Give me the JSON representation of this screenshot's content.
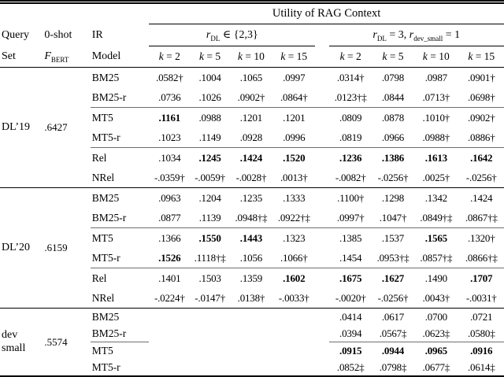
{
  "title": "Utility of RAG Context",
  "header": {
    "query_line1": "Query",
    "query_line2": "Set",
    "zeroshot_line1": "0-shot",
    "fbert_var": "F",
    "fbert_sub": "BERT",
    "ir_line1": "IR",
    "ir_line2": "Model",
    "group1": {
      "var": "r",
      "sub": "DL",
      "rest": " ∈ {2,3}"
    },
    "group2": {
      "var1": "r",
      "sub1": "DL",
      "mid": " = 3, ",
      "var2": "r",
      "sub2": "dev_small",
      "end": " = 1"
    },
    "k_var": "k",
    "k_rest": [
      " = 2",
      " = 5",
      " = 10",
      " = 15"
    ]
  },
  "blocks": [
    {
      "label": "DL’19",
      "fbert": ".6427",
      "row_groups": [
        {
          "rule": "none",
          "rows": [
            {
              "model": "BM25",
              "g1": [
                ".0582†",
                ".1004",
                ".1065",
                ".0997"
              ],
              "g2": [
                ".0314†",
                ".0798",
                ".0987",
                ".0901†"
              ],
              "b1": [],
              "b2": []
            },
            {
              "model": "BM25-r",
              "g1": [
                ".0736",
                ".1026",
                ".0902†",
                ".0864†"
              ],
              "g2": [
                ".0123†‡",
                ".0844",
                ".0713†",
                ".0698†"
              ],
              "b1": [],
              "b2": []
            }
          ]
        },
        {
          "rule": "data",
          "rows": [
            {
              "model": "MT5",
              "g1": [
                ".1161",
                ".0988",
                ".1201",
                ".1201"
              ],
              "g2": [
                ".0809",
                ".0878",
                ".1010†",
                ".0902†"
              ],
              "b1": [
                0
              ],
              "b2": []
            },
            {
              "model": "MT5-r",
              "g1": [
                ".1023",
                ".1149",
                ".0928",
                ".0996"
              ],
              "g2": [
                ".0819",
                ".0966",
                ".0988†",
                ".0886†"
              ],
              "b1": [],
              "b2": []
            }
          ]
        },
        {
          "rule": "data",
          "rows": [
            {
              "model": "Rel",
              "g1": [
                ".1034",
                ".1245",
                ".1424",
                ".1520"
              ],
              "g2": [
                ".1236",
                ".1386",
                ".1613",
                ".1642"
              ],
              "b1": [
                1,
                2,
                3
              ],
              "b2": [
                0,
                1,
                2,
                3
              ]
            },
            {
              "model": "NRel",
              "g1": [
                "-.0359†",
                "-.0059†",
                "-.0028†",
                ".0013†"
              ],
              "g2": [
                "-.0082†",
                "-.0256†",
                ".0025†",
                "-.0256†"
              ],
              "b1": [],
              "b2": []
            }
          ]
        }
      ]
    },
    {
      "label": "DL’20",
      "fbert": ".6159",
      "row_groups": [
        {
          "rule": "none",
          "rows": [
            {
              "model": "BM25",
              "g1": [
                ".0963",
                ".1204",
                ".1235",
                ".1333"
              ],
              "g2": [
                ".1100†",
                ".1298",
                ".1342",
                ".1424"
              ],
              "b1": [],
              "b2": []
            },
            {
              "model": "BM25-r",
              "g1": [
                ".0877",
                ".1139",
                ".0948†‡",
                ".0922†‡"
              ],
              "g2": [
                ".0997†",
                ".1047†",
                ".0849†‡",
                ".0867†‡"
              ],
              "b1": [],
              "b2": []
            }
          ]
        },
        {
          "rule": "data",
          "rows": [
            {
              "model": "MT5",
              "g1": [
                ".1366",
                ".1550",
                ".1443",
                ".1323"
              ],
              "g2": [
                ".1385",
                ".1537",
                ".1565",
                ".1320†"
              ],
              "b1": [
                1,
                2
              ],
              "b2": [
                2
              ]
            },
            {
              "model": "MT5-r",
              "g1": [
                ".1526",
                ".1118†‡",
                ".1056",
                ".1066†"
              ],
              "g2": [
                ".1454",
                ".0953†‡",
                ".0857†‡",
                ".0866†‡"
              ],
              "b1": [
                0
              ],
              "b2": []
            }
          ]
        },
        {
          "rule": "data",
          "rows": [
            {
              "model": "Rel",
              "g1": [
                ".1401",
                ".1503",
                ".1359",
                ".1602"
              ],
              "g2": [
                ".1675",
                ".1627",
                ".1490",
                ".1707"
              ],
              "b1": [
                3
              ],
              "b2": [
                0,
                1,
                3
              ]
            },
            {
              "model": "NRel",
              "g1": [
                "-.0224†",
                "-.0147†",
                ".0138†",
                "-.0033†"
              ],
              "g2": [
                "-.0020†",
                "-.0256†",
                ".0043†",
                "-.0031†"
              ],
              "b1": [],
              "b2": []
            }
          ]
        }
      ]
    },
    {
      "label": "dev small",
      "fbert": ".5574",
      "row_groups": [
        {
          "rule": "none",
          "rows": [
            {
              "model": "BM25",
              "g1": [
                "",
                "",
                "",
                ""
              ],
              "g2": [
                ".0414",
                ".0617",
                ".0700",
                ".0721"
              ],
              "b1": [],
              "b2": []
            },
            {
              "model": "BM25-r",
              "g1": [
                "",
                "",
                "",
                ""
              ],
              "g2": [
                ".0394",
                ".0567‡",
                ".0623‡",
                ".0580‡"
              ],
              "b1": [],
              "b2": []
            }
          ]
        },
        {
          "rule": "short",
          "rows": [
            {
              "model": "MT5",
              "g1": [
                "",
                "",
                "",
                ""
              ],
              "g2": [
                ".0915",
                ".0944",
                ".0965",
                ".0916"
              ],
              "b1": [],
              "b2": [
                0,
                1,
                2,
                3
              ]
            },
            {
              "model": "MT5-r",
              "g1": [
                "",
                "",
                "",
                ""
              ],
              "g2": [
                ".0852‡",
                ".0798‡",
                ".0677‡",
                ".0614‡"
              ],
              "b1": [],
              "b2": []
            }
          ]
        }
      ]
    }
  ]
}
